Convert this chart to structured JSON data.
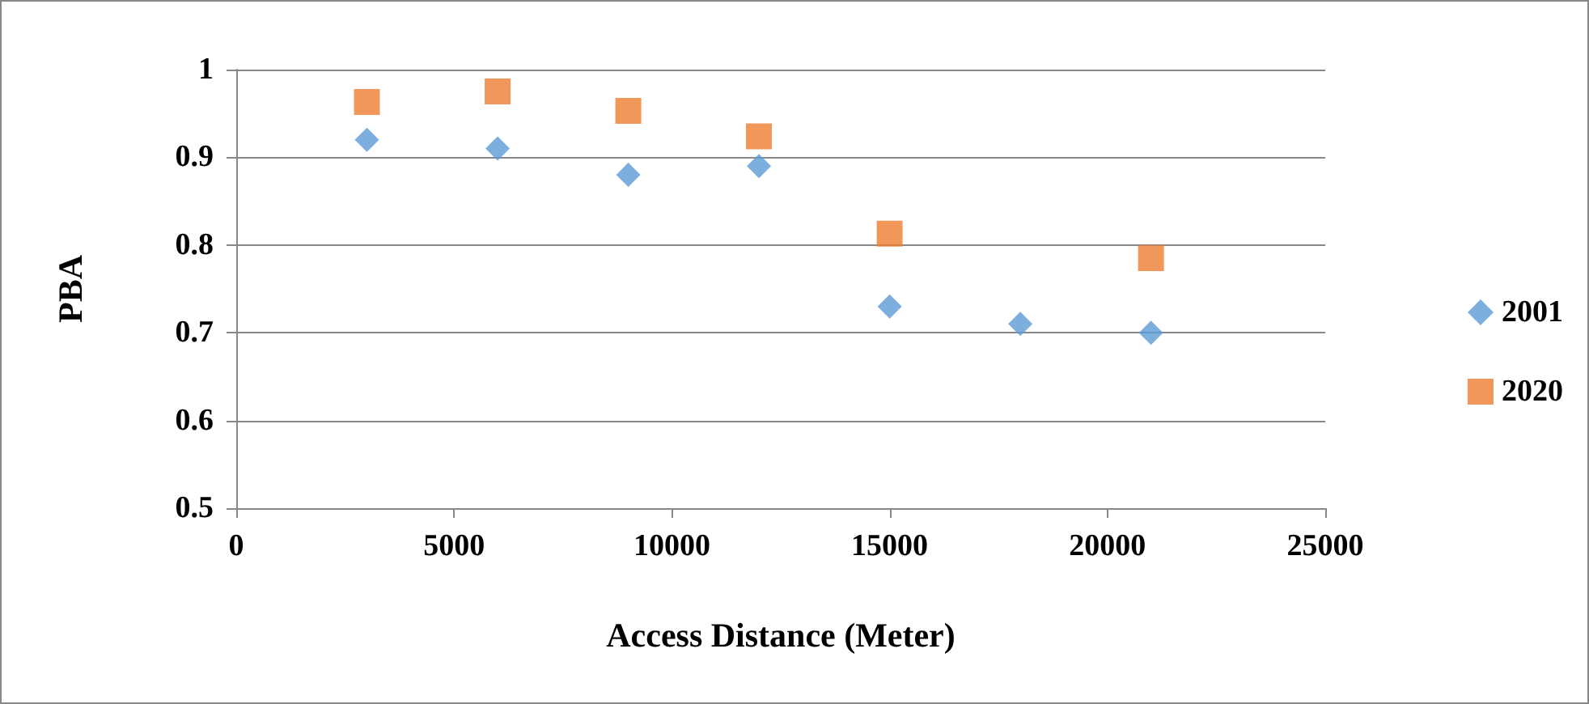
{
  "chart_data": {
    "type": "scatter",
    "xlabel": "Access Distance (Meter)",
    "ylabel": "PBA",
    "xlim": [
      0,
      25000
    ],
    "xticks": [
      0,
      5000,
      10000,
      15000,
      20000,
      25000
    ],
    "ylim": [
      0.5,
      1
    ],
    "yticks": [
      0.5,
      0.6,
      0.7,
      0.8,
      0.9,
      1
    ],
    "grid": "y",
    "legend": "right",
    "series": [
      {
        "name": "2001",
        "color": "#5b9bd5",
        "marker": "diamond",
        "x": [
          3000,
          6000,
          9000,
          12000,
          15000,
          18000,
          21000
        ],
        "values": [
          0.92,
          0.91,
          0.88,
          0.89,
          0.73,
          0.71,
          0.7
        ]
      },
      {
        "name": "2020",
        "color": "#ed7d31",
        "marker": "square",
        "x": [
          3000,
          6000,
          9000,
          12000,
          15000,
          21000
        ],
        "values": [
          0.963,
          0.975,
          0.953,
          0.924,
          0.813,
          0.785
        ]
      }
    ]
  }
}
